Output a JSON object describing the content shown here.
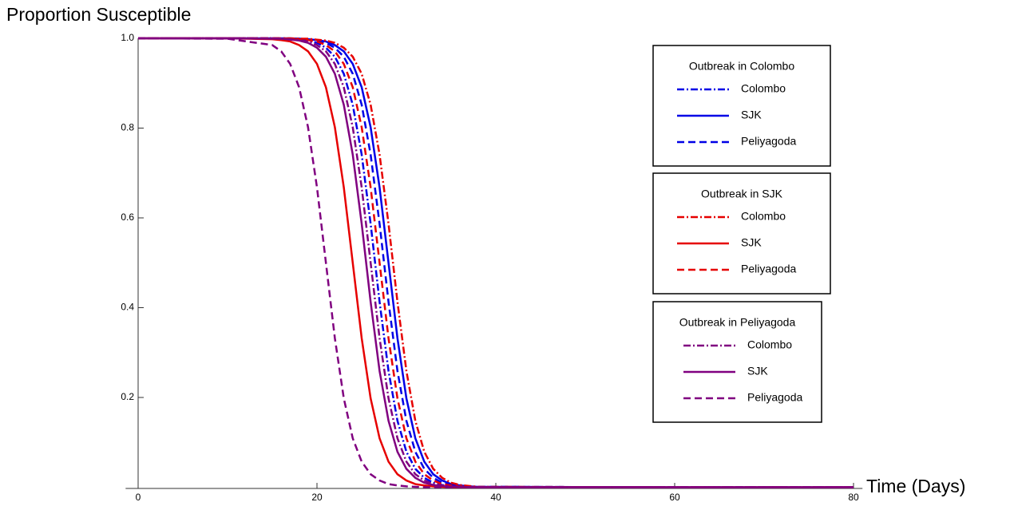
{
  "chart_data": {
    "type": "line",
    "y_label": "Proportion Susceptible",
    "x_label": "Time (Days)",
    "xlim": [
      -1.4,
      81
    ],
    "ylim": [
      0,
      1
    ],
    "xticks": [
      0,
      20,
      40,
      60,
      80
    ],
    "yticks": [
      0.2,
      0.4,
      0.6,
      0.8,
      {
        "value": 1,
        "label": "1.0"
      }
    ],
    "legend_titles": [
      "Outbreak in Colombo",
      "Outbreak in SJK",
      "Outbreak in Peliyagoda"
    ],
    "x": [
      0,
      10,
      15,
      16,
      17,
      18,
      19,
      20,
      21,
      22,
      23,
      24,
      25,
      26,
      27,
      28,
      29,
      30,
      31,
      32,
      33,
      34,
      35,
      36,
      37,
      38,
      60,
      80
    ],
    "series": [
      {
        "name": "Colombo",
        "color": "#0000e6",
        "style": "dashdot",
        "values": [
          1,
          1,
          1,
          0.999,
          0.999,
          0.997,
          0.995,
          0.99,
          0.979,
          0.959,
          0.921,
          0.852,
          0.741,
          0.587,
          0.413,
          0.259,
          0.148,
          0.079,
          0.041,
          0.021,
          0.01,
          0.005,
          0.003,
          0.001,
          0.001,
          0,
          0,
          0
        ]
      },
      {
        "name": "SJK",
        "color": "#0000e6",
        "style": "solid",
        "values": [
          1,
          1,
          1,
          1,
          1,
          0.999,
          0.998,
          0.996,
          0.993,
          0.985,
          0.971,
          0.943,
          0.891,
          0.802,
          0.668,
          0.5,
          0.332,
          0.198,
          0.109,
          0.057,
          0.029,
          0.015,
          0.007,
          0.004,
          0.002,
          0.001,
          0,
          0
        ]
      },
      {
        "name": "Peliyagoda",
        "color": "#0000e6",
        "style": "dashed",
        "values": [
          1,
          1,
          1,
          1,
          0.999,
          0.999,
          0.997,
          0.995,
          0.99,
          0.979,
          0.959,
          0.921,
          0.852,
          0.741,
          0.587,
          0.413,
          0.259,
          0.148,
          0.079,
          0.041,
          0.021,
          0.01,
          0.005,
          0.003,
          0.001,
          0.001,
          0,
          0
        ]
      },
      {
        "name": "Colombo",
        "color": "#e60000",
        "style": "dashdot",
        "values": [
          1,
          1,
          1,
          1,
          1,
          0.999,
          0.999,
          0.997,
          0.995,
          0.99,
          0.979,
          0.959,
          0.921,
          0.852,
          0.741,
          0.587,
          0.413,
          0.259,
          0.148,
          0.079,
          0.041,
          0.021,
          0.01,
          0.005,
          0.003,
          0.001,
          0,
          0
        ]
      },
      {
        "name": "SJK",
        "color": "#e60000",
        "style": "solid",
        "values": [
          1,
          1,
          0.998,
          0.996,
          0.993,
          0.985,
          0.971,
          0.943,
          0.891,
          0.802,
          0.668,
          0.5,
          0.332,
          0.198,
          0.109,
          0.057,
          0.029,
          0.015,
          0.007,
          0.004,
          0.002,
          0.001,
          0,
          0,
          0,
          0,
          0,
          0
        ]
      },
      {
        "name": "Peliyagoda",
        "color": "#e60000",
        "style": "dashed",
        "values": [
          1,
          1,
          1,
          1,
          0.999,
          0.998,
          0.996,
          0.993,
          0.985,
          0.971,
          0.943,
          0.891,
          0.802,
          0.668,
          0.5,
          0.332,
          0.198,
          0.109,
          0.057,
          0.029,
          0.015,
          0.007,
          0.004,
          0.002,
          0.001,
          0,
          0,
          0
        ]
      },
      {
        "name": "Colombo",
        "color": "#800080",
        "style": "dashdot",
        "values": [
          1,
          1,
          1,
          0.999,
          0.998,
          0.996,
          0.993,
          0.985,
          0.971,
          0.943,
          0.891,
          0.802,
          0.668,
          0.5,
          0.332,
          0.198,
          0.109,
          0.057,
          0.029,
          0.015,
          0.007,
          0.004,
          0.002,
          0.001,
          0,
          0,
          0,
          0
        ]
      },
      {
        "name": "SJK",
        "color": "#800080",
        "style": "solid",
        "values": [
          1,
          1,
          0.999,
          0.999,
          0.997,
          0.995,
          0.99,
          0.979,
          0.959,
          0.921,
          0.852,
          0.741,
          0.587,
          0.413,
          0.259,
          0.148,
          0.079,
          0.041,
          0.021,
          0.01,
          0.005,
          0.003,
          0.001,
          0.001,
          0,
          0,
          0,
          0
        ]
      },
      {
        "name": "Peliyagoda",
        "color": "#800080",
        "style": "dashed",
        "values": [
          1,
          0.999,
          0.985,
          0.971,
          0.943,
          0.891,
          0.802,
          0.668,
          0.5,
          0.332,
          0.198,
          0.109,
          0.057,
          0.029,
          0.015,
          0.007,
          0.004,
          0.002,
          0.001,
          0,
          0,
          0,
          0,
          0,
          0,
          0,
          0,
          0
        ]
      }
    ]
  }
}
